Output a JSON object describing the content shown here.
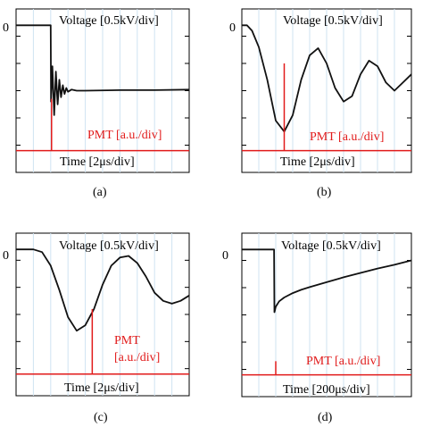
{
  "chart_data": [
    {
      "id": "a",
      "type": "line",
      "caption": "(a)",
      "zero_label": "0",
      "voltage_label": "Voltage [0.5kV/div]",
      "pmt_label": [
        "PMT [a.u./div]"
      ],
      "time_label": "Time [2μs/div]",
      "xlim": [
        0,
        10
      ],
      "ylim": [
        -2.7,
        0.3
      ],
      "series": [
        {
          "color": "#111111",
          "x": [
            0,
            2.0,
            2.02,
            2.06,
            2.1,
            2.2,
            2.3,
            2.4,
            2.5,
            2.6,
            2.7,
            2.8,
            2.9,
            3.0,
            3.2,
            3.5,
            4,
            6,
            8,
            10
          ],
          "values": [
            0,
            0,
            -1.4,
            -1.05,
            -0.75,
            -1.65,
            -0.85,
            -1.45,
            -1.0,
            -1.32,
            -1.1,
            -1.26,
            -1.15,
            -1.22,
            -1.18,
            -1.2,
            -1.2,
            -1.19,
            -1.19,
            -1.18
          ]
        }
      ],
      "pmt": {
        "color": "#e11a1a",
        "baseline": -2.3,
        "pulse_x": 2.05,
        "pulse_top": -1.35
      },
      "grid": "vertical"
    },
    {
      "id": "b",
      "type": "line",
      "caption": "(b)",
      "zero_label": "0",
      "voltage_label": "Voltage [0.5kV/div]",
      "pmt_label": [
        "PMT [a.u./div]"
      ],
      "time_label": "Time [2μs/div]",
      "xlim": [
        0,
        10
      ],
      "ylim": [
        -2.7,
        0.3
      ],
      "series": [
        {
          "color": "#111111",
          "x": [
            0,
            0.3,
            0.6,
            1.0,
            1.5,
            2.0,
            2.5,
            3.0,
            3.5,
            4.0,
            4.5,
            5.0,
            5.5,
            6.0,
            6.5,
            7.0,
            7.5,
            8.0,
            8.5,
            9.0,
            9.5,
            10.0
          ],
          "values": [
            0,
            0,
            -0.1,
            -0.4,
            -1.0,
            -1.75,
            -1.95,
            -1.65,
            -1.0,
            -0.55,
            -0.42,
            -0.7,
            -1.15,
            -1.4,
            -1.3,
            -0.9,
            -0.65,
            -0.75,
            -1.05,
            -1.2,
            -1.05,
            -0.9
          ]
        }
      ],
      "pmt": {
        "color": "#e11a1a",
        "baseline": -2.3,
        "pulse_x": 2.5,
        "pulse_top": -0.7
      },
      "grid": "vertical"
    },
    {
      "id": "c",
      "type": "line",
      "caption": "(c)",
      "zero_label": "0",
      "voltage_label": "Voltage [0.5kV/div]",
      "pmt_label": [
        "PMT",
        "[a.u./div]"
      ],
      "time_label": "Time [2μs/div]",
      "xlim": [
        0,
        10
      ],
      "ylim": [
        -2.7,
        0.3
      ],
      "series": [
        {
          "color": "#111111",
          "x": [
            0,
            1.0,
            1.5,
            2.0,
            2.5,
            3.0,
            3.5,
            4.0,
            4.5,
            5.0,
            5.5,
            6.0,
            6.5,
            7.0,
            7.5,
            8.0,
            8.5,
            9.0,
            9.5,
            10.0
          ],
          "values": [
            0,
            0,
            -0.05,
            -0.3,
            -0.75,
            -1.25,
            -1.5,
            -1.4,
            -1.1,
            -0.65,
            -0.3,
            -0.15,
            -0.12,
            -0.25,
            -0.5,
            -0.8,
            -0.95,
            -1.0,
            -0.95,
            -0.85
          ]
        }
      ],
      "pmt": {
        "color": "#e11a1a",
        "baseline": -2.3,
        "pulse_x": 4.4,
        "pulse_top": -1.1
      },
      "grid": "vertical"
    },
    {
      "id": "d",
      "type": "line",
      "caption": "(d)",
      "zero_label": "0",
      "voltage_label": "Voltage [0.5kV/div]",
      "pmt_label": [
        "PMT [a.u./div]"
      ],
      "time_label": "Time [200μs/div]",
      "xlim": [
        0,
        10
      ],
      "ylim": [
        -2.7,
        0.3
      ],
      "series": [
        {
          "color": "#111111",
          "x": [
            0,
            1.9,
            1.92,
            2.0,
            2.2,
            2.5,
            3.0,
            3.5,
            4.0,
            5.0,
            6.0,
            7.0,
            8.0,
            9.0,
            10.0
          ],
          "values": [
            0,
            0,
            -1.15,
            -1.05,
            -0.95,
            -0.88,
            -0.8,
            -0.74,
            -0.69,
            -0.6,
            -0.51,
            -0.43,
            -0.35,
            -0.28,
            -0.2
          ]
        }
      ],
      "pmt": {
        "color": "#e11a1a",
        "baseline": -2.3,
        "pulse_x": 2.0,
        "pulse_top": -2.05
      },
      "grid": "vertical"
    }
  ]
}
